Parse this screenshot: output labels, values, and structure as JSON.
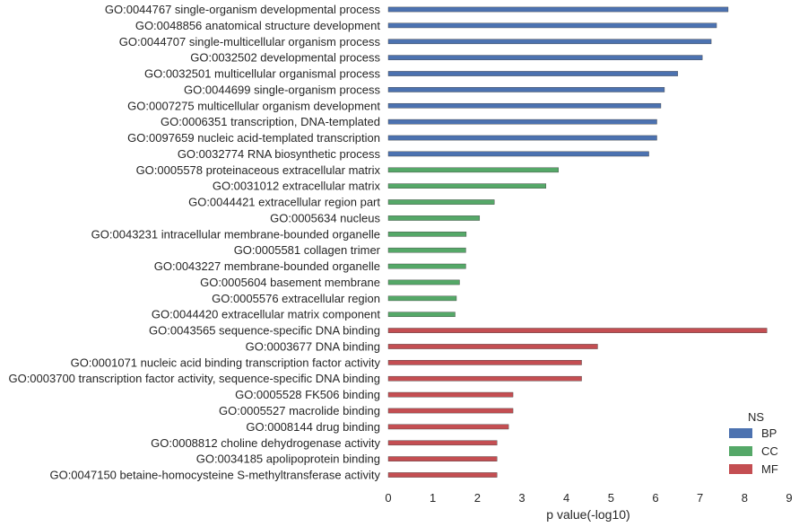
{
  "chart_data": {
    "type": "bar",
    "orientation": "horizontal",
    "xlabel": "p value(-log10)",
    "xlim": [
      0,
      9
    ],
    "xticks": [
      0,
      1,
      2,
      3,
      4,
      5,
      6,
      7,
      8,
      9
    ],
    "grid": false,
    "legend": {
      "title": "NS",
      "placement": "bottom-right",
      "entries": [
        {
          "name": "BP",
          "color": "#4c72b0"
        },
        {
          "name": "CC",
          "color": "#55a868"
        },
        {
          "name": "MF",
          "color": "#c44e52"
        }
      ]
    },
    "bars": [
      {
        "label": "GO:0044767 single-organism developmental process",
        "value": 7.63,
        "ns": "BP"
      },
      {
        "label": "GO:0048856 anatomical structure development",
        "value": 7.37,
        "ns": "BP"
      },
      {
        "label": "GO:0044707 single-multicellular organism process",
        "value": 7.25,
        "ns": "BP"
      },
      {
        "label": "GO:0032502 developmental process",
        "value": 7.05,
        "ns": "BP"
      },
      {
        "label": "GO:0032501 multicellular organismal process",
        "value": 6.5,
        "ns": "BP"
      },
      {
        "label": "GO:0044699 single-organism process",
        "value": 6.2,
        "ns": "BP"
      },
      {
        "label": "GO:0007275 multicellular organism development",
        "value": 6.12,
        "ns": "BP"
      },
      {
        "label": "GO:0006351 transcription, DNA-templated",
        "value": 6.03,
        "ns": "BP"
      },
      {
        "label": "GO:0097659 nucleic acid-templated transcription",
        "value": 6.03,
        "ns": "BP"
      },
      {
        "label": "GO:0032774 RNA biosynthetic process",
        "value": 5.85,
        "ns": "BP"
      },
      {
        "label": "GO:0005578 proteinaceous extracellular matrix",
        "value": 3.82,
        "ns": "CC"
      },
      {
        "label": "GO:0031012 extracellular matrix",
        "value": 3.54,
        "ns": "CC"
      },
      {
        "label": "GO:0044421 extracellular region part",
        "value": 2.38,
        "ns": "CC"
      },
      {
        "label": "GO:0005634 nucleus",
        "value": 2.05,
        "ns": "CC"
      },
      {
        "label": "GO:0043231 intracellular membrane-bounded organelle",
        "value": 1.75,
        "ns": "CC"
      },
      {
        "label": "GO:0005581 collagen trimer",
        "value": 1.74,
        "ns": "CC"
      },
      {
        "label": "GO:0043227 membrane-bounded organelle",
        "value": 1.74,
        "ns": "CC"
      },
      {
        "label": "GO:0005604 basement membrane",
        "value": 1.6,
        "ns": "CC"
      },
      {
        "label": "GO:0005576 extracellular region",
        "value": 1.53,
        "ns": "CC"
      },
      {
        "label": "GO:0044420 extracellular matrix component",
        "value": 1.5,
        "ns": "CC"
      },
      {
        "label": "GO:0043565 sequence-specific DNA binding",
        "value": 8.5,
        "ns": "MF"
      },
      {
        "label": "GO:0003677 DNA binding",
        "value": 4.7,
        "ns": "MF"
      },
      {
        "label": "GO:0001071 nucleic acid binding transcription factor activity",
        "value": 4.34,
        "ns": "MF"
      },
      {
        "label": "GO:0003700 transcription factor activity, sequence-specific DNA binding",
        "value": 4.34,
        "ns": "MF"
      },
      {
        "label": "GO:0005528 FK506 binding",
        "value": 2.8,
        "ns": "MF"
      },
      {
        "label": "GO:0005527 macrolide binding",
        "value": 2.8,
        "ns": "MF"
      },
      {
        "label": "GO:0008144 drug binding",
        "value": 2.7,
        "ns": "MF"
      },
      {
        "label": "GO:0008812 choline dehydrogenase activity",
        "value": 2.44,
        "ns": "MF"
      },
      {
        "label": "GO:0034185 apolipoprotein binding",
        "value": 2.44,
        "ns": "MF"
      },
      {
        "label": "GO:0047150 betaine-homocysteine S-methyltransferase activity",
        "value": 2.44,
        "ns": "MF"
      }
    ]
  }
}
